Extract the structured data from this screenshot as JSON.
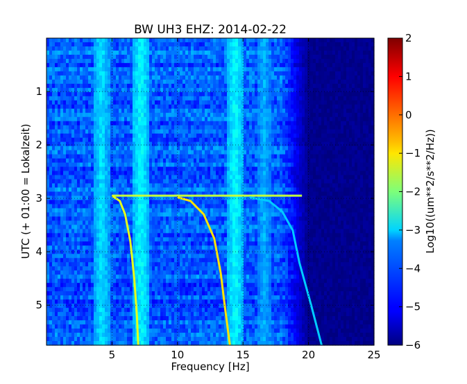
{
  "chart_data": {
    "type": "heatmap",
    "title": "BW UH3 EHZ: 2014-02-22",
    "xlabel": "Frequency [Hz]",
    "ylabel": "UTC (+ 01:00 = Lokalzeit)",
    "xlim": [
      0,
      25
    ],
    "ylim": [
      5.75,
      0
    ],
    "x_ticks": [
      5,
      10,
      15,
      20,
      25
    ],
    "y_ticks": [
      1,
      2,
      3,
      4,
      5
    ],
    "grid": true,
    "colorbar": {
      "label": "Log10((um**2/s**2/Hz))",
      "range": [
        -6,
        2
      ],
      "ticks": [
        2,
        1,
        0,
        -1,
        -2,
        -3,
        -4,
        -5,
        -6
      ],
      "colormap": "jet"
    },
    "background_level": -4.3,
    "high_freq_floor": {
      "start_hz": 18,
      "level": -5.9
    },
    "vertical_lines": [
      {
        "freq_hz": 4.2,
        "level": -3.2
      },
      {
        "freq_hz": 7.2,
        "level": -3.0
      },
      {
        "freq_hz": 14.4,
        "level": -3.0
      },
      {
        "freq_hz": 16.6,
        "level": -3.6
      }
    ],
    "horizontal_event": {
      "time": 2.95,
      "freq_range": [
        5,
        19.5
      ],
      "level": -1.5
    },
    "swept_tones": [
      {
        "points": [
          [
            5.0,
            2.95
          ],
          [
            5.6,
            3.05
          ],
          [
            6.0,
            3.3
          ],
          [
            6.4,
            3.8
          ],
          [
            6.7,
            4.5
          ],
          [
            6.9,
            5.2
          ],
          [
            7.0,
            5.75
          ]
        ],
        "level": -1.2
      },
      {
        "points": [
          [
            10.0,
            2.98
          ],
          [
            11.0,
            3.05
          ],
          [
            12.0,
            3.3
          ],
          [
            12.8,
            3.75
          ],
          [
            13.3,
            4.4
          ],
          [
            13.6,
            5.0
          ],
          [
            14.0,
            5.75
          ]
        ],
        "level": -0.8
      },
      {
        "points": [
          [
            15.5,
            2.98
          ],
          [
            17.0,
            3.05
          ],
          [
            18.0,
            3.25
          ],
          [
            18.8,
            3.6
          ],
          [
            19.3,
            4.2
          ],
          [
            20.2,
            5.0
          ],
          [
            21.0,
            5.75
          ]
        ],
        "level": -3.4
      }
    ]
  }
}
